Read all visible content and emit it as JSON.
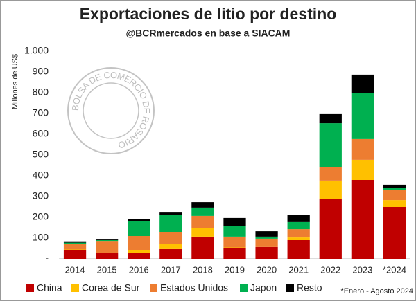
{
  "chart_data": {
    "type": "stacked_bar",
    "title": "Exportaciones de litio por destino",
    "subtitle": "@BCRmercados en base a SIACAM",
    "y_label": "Millones de US$",
    "footnote": "*Enero - Agosto 2024",
    "watermark": "BOLSA DE COMERCIO DE ROSARIO",
    "categories": [
      "2014",
      "2015",
      "2016",
      "2017",
      "2018",
      "2019",
      "2020",
      "2021",
      "2022",
      "2023",
      "*2024"
    ],
    "series": [
      {
        "name": "China",
        "color": "#c00000",
        "values": [
          42,
          27,
          30,
          47,
          107,
          53,
          57,
          90,
          290,
          380,
          250
        ]
      },
      {
        "name": "Corea de Sur",
        "color": "#ffc000",
        "values": [
          3,
          2,
          10,
          26,
          40,
          2,
          0,
          13,
          87,
          97,
          33
        ]
      },
      {
        "name": "Estados Unidos",
        "color": "#ed7d31",
        "values": [
          25,
          54,
          70,
          54,
          60,
          52,
          40,
          40,
          66,
          100,
          47
        ]
      },
      {
        "name": "Japon",
        "color": "#00b050",
        "values": [
          8,
          7,
          70,
          83,
          40,
          53,
          10,
          34,
          210,
          220,
          13
        ]
      },
      {
        "name": "Resto",
        "color": "#000000",
        "values": [
          3,
          3,
          13,
          13,
          26,
          37,
          26,
          36,
          44,
          90,
          14
        ]
      }
    ],
    "ylim": [
      0,
      1000
    ],
    "yticks": [
      {
        "value": 0,
        "label": "-"
      },
      100,
      200,
      300,
      400,
      500,
      600,
      700,
      800,
      900,
      {
        "value": 1000,
        "label": "1.000"
      }
    ],
    "grid": false,
    "legend": "bottom"
  }
}
